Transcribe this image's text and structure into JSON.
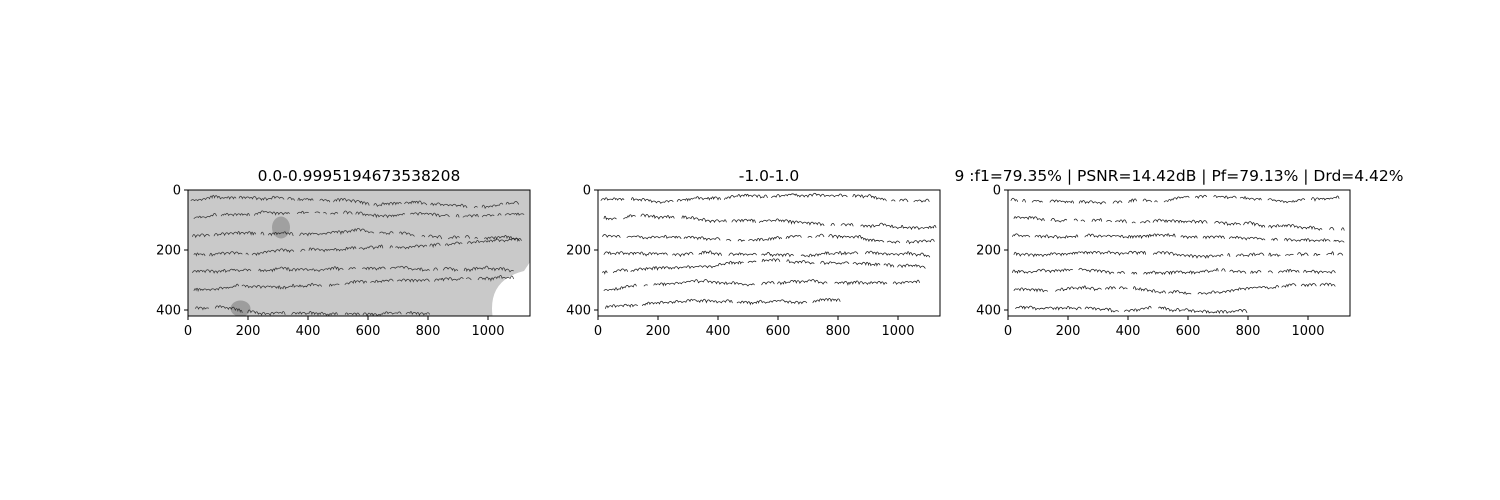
{
  "chart_data": [
    {
      "type": "image",
      "title": "0.0-0.9995194673538208",
      "xticks": [
        0,
        200,
        400,
        600,
        800,
        1000
      ],
      "yticks": [
        0,
        200,
        400
      ],
      "xlim": [
        0,
        1140
      ],
      "ylim": [
        0,
        420
      ],
      "content": "grayscale handwritten document scan"
    },
    {
      "type": "image",
      "title": "-1.0-1.0",
      "xticks": [
        0,
        200,
        400,
        600,
        800,
        1000
      ],
      "yticks": [
        0,
        200,
        400
      ],
      "xlim": [
        0,
        1140
      ],
      "ylim": [
        0,
        420
      ],
      "content": "binarized handwriting (ground truth)"
    },
    {
      "type": "image",
      "title": "9 :f1=79.35% | PSNR=14.42dB | Pf=79.13% | Drd=4.42%",
      "xticks": [
        0,
        200,
        400,
        600,
        800,
        1000
      ],
      "yticks": [
        0,
        200,
        400
      ],
      "xlim": [
        0,
        1140
      ],
      "ylim": [
        0,
        420
      ],
      "content": "binarized handwriting (prediction)"
    }
  ],
  "colors": {
    "background": "#ffffff",
    "paper_gray": "#c9c9c9",
    "ink": "#1a1a1a"
  }
}
